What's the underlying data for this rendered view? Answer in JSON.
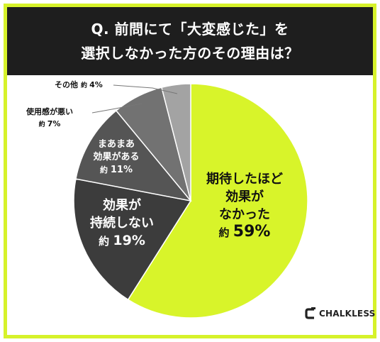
{
  "title": {
    "line1": "Q. 前問にて「大変感じた」を",
    "line2": "選択しなかった方のその理由は？"
  },
  "chart_data": {
    "type": "pie",
    "start_angle_deg": 0,
    "direction": "clockwise",
    "slices": [
      {
        "lines": [
          "期待したほど",
          "効果が",
          "なかった"
        ],
        "approx": "約",
        "value": 59,
        "display": "59%",
        "color": "#d8f42a"
      },
      {
        "lines": [
          "効果が",
          "持続しない"
        ],
        "approx": "約",
        "value": 19,
        "display": "19%",
        "color": "#3c3c3c"
      },
      {
        "lines": [
          "まあまあ",
          "効果がある"
        ],
        "approx": "約",
        "value": 11,
        "display": "11%",
        "color": "#555555"
      },
      {
        "lines": [
          "使用感が悪い"
        ],
        "approx": "約",
        "value": 7,
        "display": "7%",
        "color": "#727272"
      },
      {
        "lines": [
          "その他"
        ],
        "approx": "約",
        "value": 4,
        "display": "4%",
        "color": "#a3a3a3"
      }
    ]
  },
  "logo": {
    "text": "CHALKLESS",
    "icon": "chalkless-c-logo-icon"
  }
}
